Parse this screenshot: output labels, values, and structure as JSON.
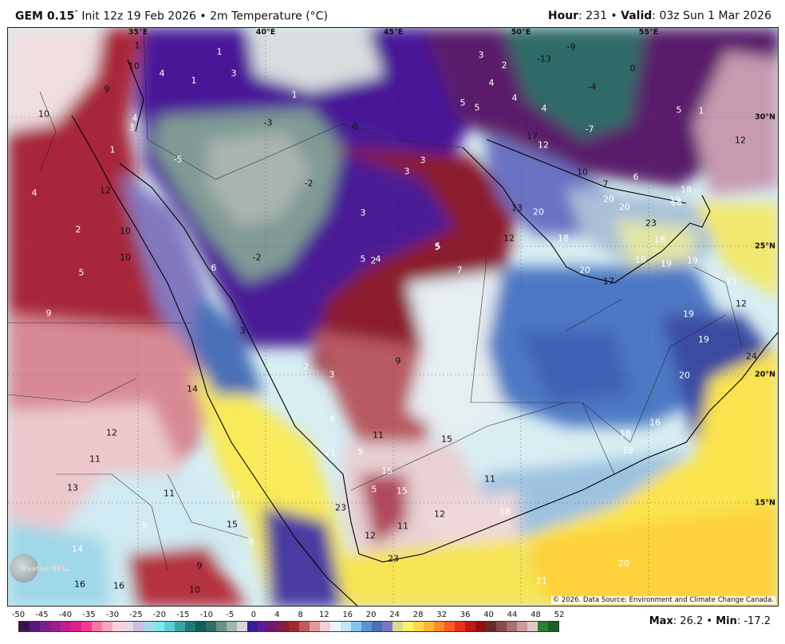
{
  "header": {
    "model_label": "GEM 0.15",
    "degree_symbol": "°",
    "init_text": "Init 12z 19 Feb 2026 • 2m Temperature (°C)",
    "hour_label": "Hour",
    "hour_value": ": 231 • ",
    "valid_label": "Valid",
    "valid_value": ": 03z Sun 1 Mar 2026"
  },
  "map": {
    "region": "Arabian Peninsula",
    "longitude_labels": [
      "35°E",
      "40°E",
      "45°E",
      "50°E",
      "55°E"
    ],
    "latitude_labels": [
      "30°N",
      "25°N",
      "20°N",
      "15°N"
    ],
    "copyright": "© 2026. Data Source: Environment and Climate Change Canada.",
    "watermark": "WeatherBELL",
    "temperature_labels": [
      "1",
      "3",
      "1",
      "-13",
      "-9",
      "10",
      "4",
      "1",
      "3",
      "2",
      "4",
      "-4",
      "0",
      "4",
      "9",
      "1",
      "-3",
      "0",
      "5",
      "5",
      "4",
      "4",
      "5",
      "1",
      "10",
      "3",
      "-7",
      "3",
      "1",
      "-5",
      "17",
      "12",
      "12",
      "4",
      "12",
      "3",
      "3",
      "10",
      "-2",
      "7",
      "18",
      "6",
      "20",
      "20",
      "19",
      "18",
      "10",
      "13",
      "20",
      "2",
      "23",
      "5",
      "10",
      "12",
      "18",
      "18",
      "19",
      "19",
      "21",
      "5",
      "-2",
      "2",
      "4",
      "5",
      "20",
      "17",
      "6",
      "5",
      "7",
      "18",
      "12",
      "9",
      "3",
      "19",
      "19",
      "2",
      "3",
      "9",
      "20",
      "24",
      "14",
      "6",
      "11",
      "15",
      "18",
      "16",
      "12",
      "11",
      "21",
      "5",
      "18",
      "15",
      "11",
      "13",
      "5",
      "15",
      "11",
      "17",
      "23",
      "18",
      "12",
      "9",
      "15",
      "11",
      "12",
      "14",
      "8",
      "9",
      "20",
      "23",
      "16",
      "16",
      "10",
      "21"
    ]
  },
  "colorbar": {
    "ticks": [
      "-50",
      "-45",
      "-40",
      "-35",
      "-30",
      "-25",
      "-20",
      "-15",
      "-10",
      "-5",
      "0",
      "4",
      "8",
      "12",
      "16",
      "20",
      "24",
      "28",
      "32",
      "36",
      "40",
      "44",
      "48",
      "52"
    ],
    "colors": [
      "#3d1050",
      "#5a1878",
      "#7a1e8c",
      "#9c1e92",
      "#c0208e",
      "#e01f8a",
      "#f23a8e",
      "#f776a8",
      "#fba5c2",
      "#fcd0dc",
      "#e8d8ec",
      "#c8c0e0",
      "#a7d8ea",
      "#7fe6ee",
      "#5ad0d6",
      "#3aa5a8",
      "#1e7a7a",
      "#145a5a",
      "#2e6e68",
      "#6a8f86",
      "#a0b6ae",
      "#d7d7d7",
      "#3a1aa0",
      "#5c1c9a",
      "#74186c",
      "#8a1c3e",
      "#a12a30",
      "#c25a5a",
      "#dd9a9a",
      "#f2cfd0",
      "#ecf6f8",
      "#bfe8f2",
      "#88c4e6",
      "#5a94d4",
      "#4a70b8",
      "#7a78c0",
      "#d8dc90",
      "#fff26a",
      "#ffd84a",
      "#ffb43a",
      "#ff8a2a",
      "#ff5a20",
      "#e8301a",
      "#c01818",
      "#901010",
      "#6a2a2a",
      "#8a4a4a",
      "#a87070",
      "#c89c9c",
      "#e0c8c8",
      "#2e7d32",
      "#1b5e20"
    ]
  },
  "stats": {
    "max_label": "Max",
    "max_value": ": 26.2 • ",
    "min_label": "Min",
    "min_value": ": -17.2"
  }
}
